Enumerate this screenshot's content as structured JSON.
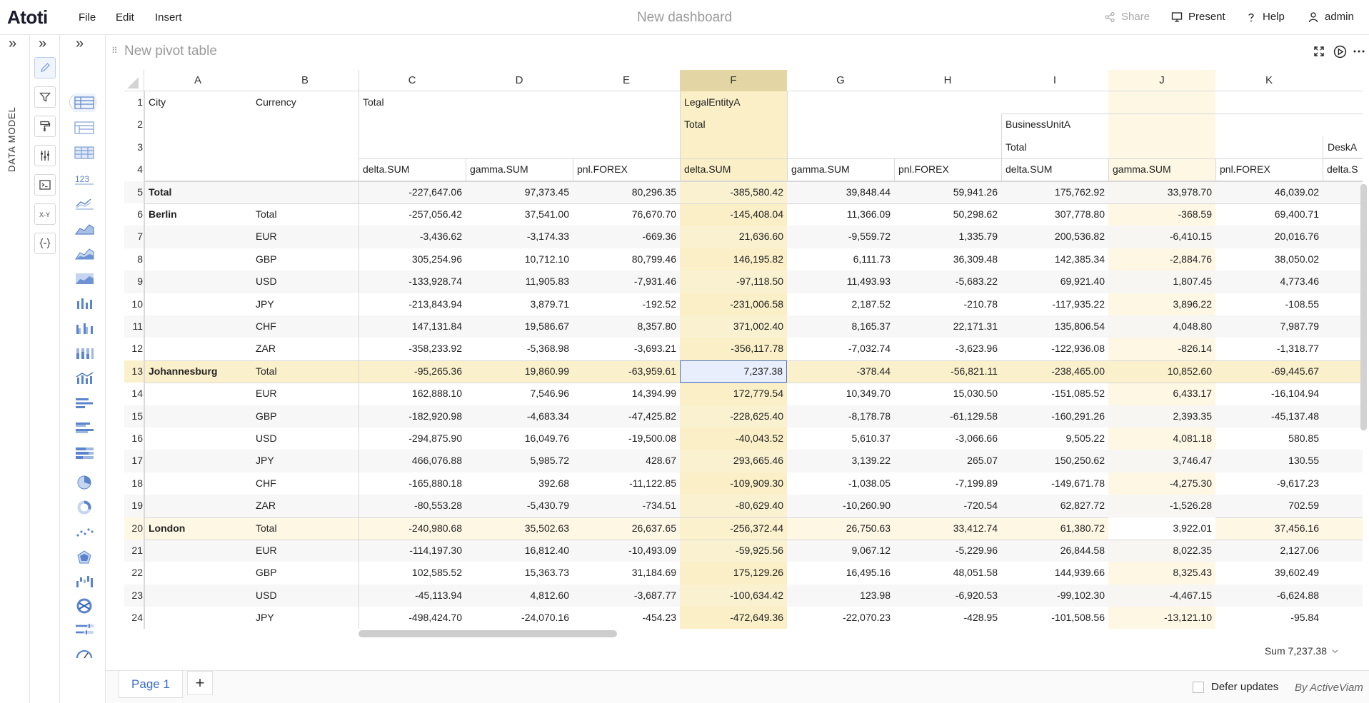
{
  "app": {
    "logo": "Atoti",
    "menus": [
      "File",
      "Edit",
      "Insert"
    ],
    "doc_title": "New dashboard",
    "actions": {
      "share": "Share",
      "present": "Present",
      "help": "Help",
      "user": "admin"
    }
  },
  "sidebar": {
    "data_model_label": "DATA MODEL"
  },
  "widget": {
    "title": "New pivot table"
  },
  "colors": {
    "highlight_col": "#faefc6",
    "highlight_col_header": "#e3d6a4",
    "highlight_row": "#fbf0cc",
    "highlight_row_alt": "#fdf7e4",
    "selected_cell": "#e8eefb",
    "selected_border": "#4a74c8",
    "zebra": "#f6f6f6",
    "accent": "#3a6fc4"
  },
  "grid": {
    "col_letters": [
      "A",
      "B",
      "C",
      "D",
      "E",
      "F",
      "G",
      "H",
      "I",
      "J",
      "K"
    ],
    "header_rows": {
      "r1": {
        "A": "City",
        "B": "Currency",
        "C": "Total",
        "F": "LegalEntityA"
      },
      "r2": {
        "F": "Total",
        "I": "BusinessUnitA"
      },
      "r3": {
        "I": "Total",
        "L": "DeskA"
      },
      "r4": {
        "C": "delta.SUM",
        "D": "gamma.SUM",
        "E": "pnl.FOREX",
        "F": "delta.SUM",
        "G": "gamma.SUM",
        "H": "pnl.FOREX",
        "I": "delta.SUM",
        "J": "gamma.SUM",
        "K": "pnl.FOREX",
        "L": "delta.S"
      }
    },
    "rows": [
      {
        "n": "5",
        "city": "Total",
        "cur": "",
        "v": [
          "-227,647.06",
          "97,373.45",
          "80,296.35",
          "-385,580.42",
          "39,848.44",
          "59,941.26",
          "175,762.92",
          "33,978.70",
          "46,039.02"
        ]
      },
      {
        "n": "6",
        "city": "Berlin",
        "cur": "Total",
        "v": [
          "-257,056.42",
          "37,541.00",
          "76,670.70",
          "-145,408.04",
          "11,366.09",
          "50,298.62",
          "307,778.80",
          "-368.59",
          "69,400.71"
        ]
      },
      {
        "n": "7",
        "city": "",
        "cur": "EUR",
        "v": [
          "-3,436.62",
          "-3,174.33",
          "-669.36",
          "21,636.60",
          "-9,559.72",
          "1,335.79",
          "200,536.82",
          "-6,410.15",
          "20,016.76"
        ]
      },
      {
        "n": "8",
        "city": "",
        "cur": "GBP",
        "v": [
          "305,254.96",
          "10,712.10",
          "80,799.46",
          "146,195.82",
          "6,111.73",
          "36,309.48",
          "142,385.34",
          "-2,884.76",
          "38,050.02"
        ]
      },
      {
        "n": "9",
        "city": "",
        "cur": "USD",
        "v": [
          "-133,928.74",
          "11,905.83",
          "-7,931.46",
          "-97,118.50",
          "11,493.93",
          "-5,683.22",
          "69,921.40",
          "1,807.45",
          "4,773.46"
        ]
      },
      {
        "n": "10",
        "city": "",
        "cur": "JPY",
        "v": [
          "-213,843.94",
          "3,879.71",
          "-192.52",
          "-231,006.58",
          "2,187.52",
          "-210.78",
          "-117,935.22",
          "3,896.22",
          "-108.55"
        ]
      },
      {
        "n": "11",
        "city": "",
        "cur": "CHF",
        "v": [
          "147,131.84",
          "19,586.67",
          "8,357.80",
          "371,002.40",
          "8,165.37",
          "22,171.31",
          "135,806.54",
          "4,048.80",
          "7,987.79"
        ]
      },
      {
        "n": "12",
        "city": "",
        "cur": "ZAR",
        "v": [
          "-358,233.92",
          "-5,368.98",
          "-3,693.21",
          "-356,117.78",
          "-7,032.74",
          "-3,623.96",
          "-122,936.08",
          "-826.14",
          "-1,318.77"
        ]
      },
      {
        "n": "13",
        "city": "Johannesburg",
        "cur": "Total",
        "v": [
          "-95,265.36",
          "19,860.99",
          "-63,959.61",
          "7,237.38",
          "-378.44",
          "-56,821.11",
          "-238,465.00",
          "10,852.60",
          "-69,445.67"
        ]
      },
      {
        "n": "14",
        "city": "",
        "cur": "EUR",
        "v": [
          "162,888.10",
          "7,546.96",
          "14,394.99",
          "172,779.54",
          "10,349.70",
          "15,030.50",
          "-151,085.52",
          "6,433.17",
          "-16,104.94"
        ]
      },
      {
        "n": "15",
        "city": "",
        "cur": "GBP",
        "v": [
          "-182,920.98",
          "-4,683.34",
          "-47,425.82",
          "-228,625.40",
          "-8,178.78",
          "-61,129.58",
          "-160,291.26",
          "2,393.35",
          "-45,137.48"
        ]
      },
      {
        "n": "16",
        "city": "",
        "cur": "USD",
        "v": [
          "-294,875.90",
          "16,049.76",
          "-19,500.08",
          "-40,043.52",
          "5,610.37",
          "-3,066.66",
          "9,505.22",
          "4,081.18",
          "580.85"
        ]
      },
      {
        "n": "17",
        "city": "",
        "cur": "JPY",
        "v": [
          "466,076.88",
          "5,985.72",
          "428.67",
          "293,665.46",
          "3,139.22",
          "265.07",
          "150,250.62",
          "3,746.47",
          "130.55"
        ]
      },
      {
        "n": "18",
        "city": "",
        "cur": "CHF",
        "v": [
          "-165,880.18",
          "392.68",
          "-11,122.85",
          "-109,909.30",
          "-1,038.05",
          "-7,199.89",
          "-149,671.78",
          "-4,275.30",
          "-9,617.23"
        ]
      },
      {
        "n": "19",
        "city": "",
        "cur": "ZAR",
        "v": [
          "-80,553.28",
          "-5,430.79",
          "-734.51",
          "-80,629.40",
          "-10,260.90",
          "-720.54",
          "62,827.72",
          "-1,526.28",
          "702.59"
        ]
      },
      {
        "n": "20",
        "city": "London",
        "cur": "Total",
        "v": [
          "-240,980.68",
          "35,502.63",
          "26,637.65",
          "-256,372.44",
          "26,750.63",
          "33,412.74",
          "61,380.72",
          "3,922.01",
          "37,456.16"
        ]
      },
      {
        "n": "21",
        "city": "",
        "cur": "EUR",
        "v": [
          "-114,197.30",
          "16,812.40",
          "-10,493.09",
          "-59,925.56",
          "9,067.12",
          "-5,229.96",
          "26,844.58",
          "8,022.35",
          "2,127.06"
        ]
      },
      {
        "n": "22",
        "city": "",
        "cur": "GBP",
        "v": [
          "102,585.52",
          "15,363.73",
          "31,184.69",
          "175,129.26",
          "16,495.16",
          "48,051.58",
          "144,939.66",
          "8,325.43",
          "39,602.49"
        ]
      },
      {
        "n": "23",
        "city": "",
        "cur": "USD",
        "v": [
          "-45,113.94",
          "4,812.60",
          "-3,687.77",
          "-100,634.42",
          "123.98",
          "-6,920.53",
          "-99,102.30",
          "-4,467.15",
          "-6,624.88"
        ]
      },
      {
        "n": "24",
        "city": "",
        "cur": "JPY",
        "v": [
          "-498,424.70",
          "-24,070.16",
          "-454.23",
          "-472,649.36",
          "-22,070.23",
          "-428.95",
          "-101,508.56",
          "-13,121.10",
          "-95.84"
        ]
      }
    ],
    "selected": {
      "row": "13",
      "col": "F"
    }
  },
  "status": {
    "sum_label": "Sum 7,237.38"
  },
  "footer": {
    "page_tab": "Page 1",
    "add_page": "+",
    "defer_updates": "Defer updates",
    "brand": "By ActiveViam"
  }
}
